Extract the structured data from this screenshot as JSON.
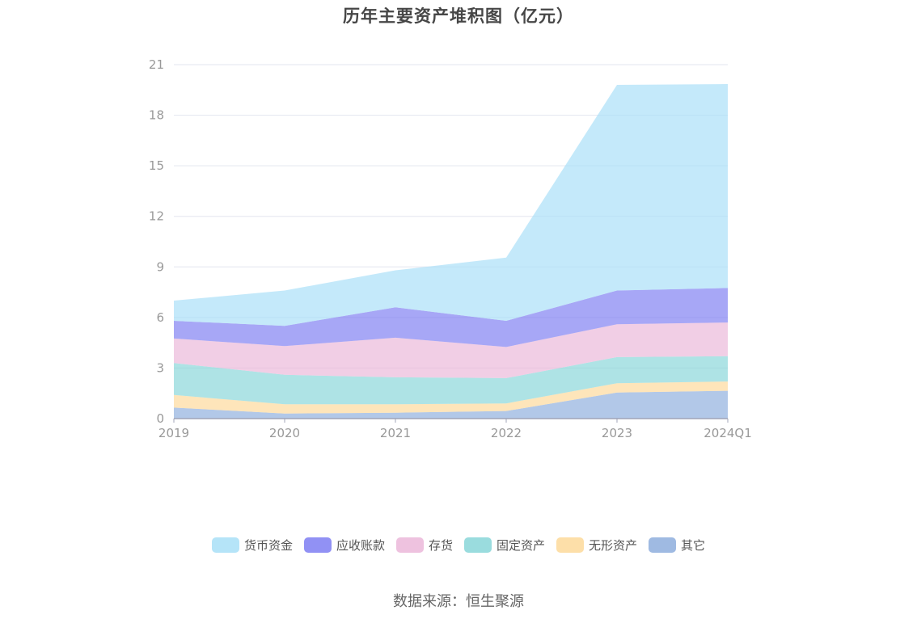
{
  "chart_data": {
    "type": "area",
    "stacked": true,
    "title": "历年主要资产堆积图（亿元）",
    "categories": [
      "2019",
      "2020",
      "2021",
      "2022",
      "2023",
      "2024Q1"
    ],
    "ylim": [
      0,
      21
    ],
    "yticks": [
      "0",
      "3",
      "6",
      "9",
      "12",
      "15",
      "18",
      "21"
    ],
    "grid": true,
    "legend_position": "bottom",
    "series": [
      {
        "name": "其它",
        "color": "#8eaedd",
        "values": [
          0.65,
          0.3,
          0.35,
          0.45,
          1.55,
          1.65
        ]
      },
      {
        "name": "无形资产",
        "color": "#fdd99a",
        "values": [
          0.75,
          0.55,
          0.5,
          0.45,
          0.55,
          0.55
        ]
      },
      {
        "name": "固定资产",
        "color": "#88d6d8",
        "values": [
          1.9,
          1.75,
          1.6,
          1.5,
          1.55,
          1.5
        ]
      },
      {
        "name": "存货",
        "color": "#ebb7d9",
        "values": [
          1.45,
          1.7,
          2.35,
          1.85,
          1.95,
          2.0
        ]
      },
      {
        "name": "应收账款",
        "color": "#7e7ef2",
        "values": [
          1.05,
          1.2,
          1.8,
          1.55,
          2.0,
          2.05
        ]
      },
      {
        "name": "货币资金",
        "color": "#a8dff7",
        "values": [
          1.2,
          2.1,
          2.2,
          3.75,
          12.2,
          12.1
        ]
      }
    ]
  },
  "legend_order": [
    "货币资金",
    "应收账款",
    "存货",
    "固定资产",
    "无形资产",
    "其它"
  ],
  "source": "数据来源：恒生聚源"
}
